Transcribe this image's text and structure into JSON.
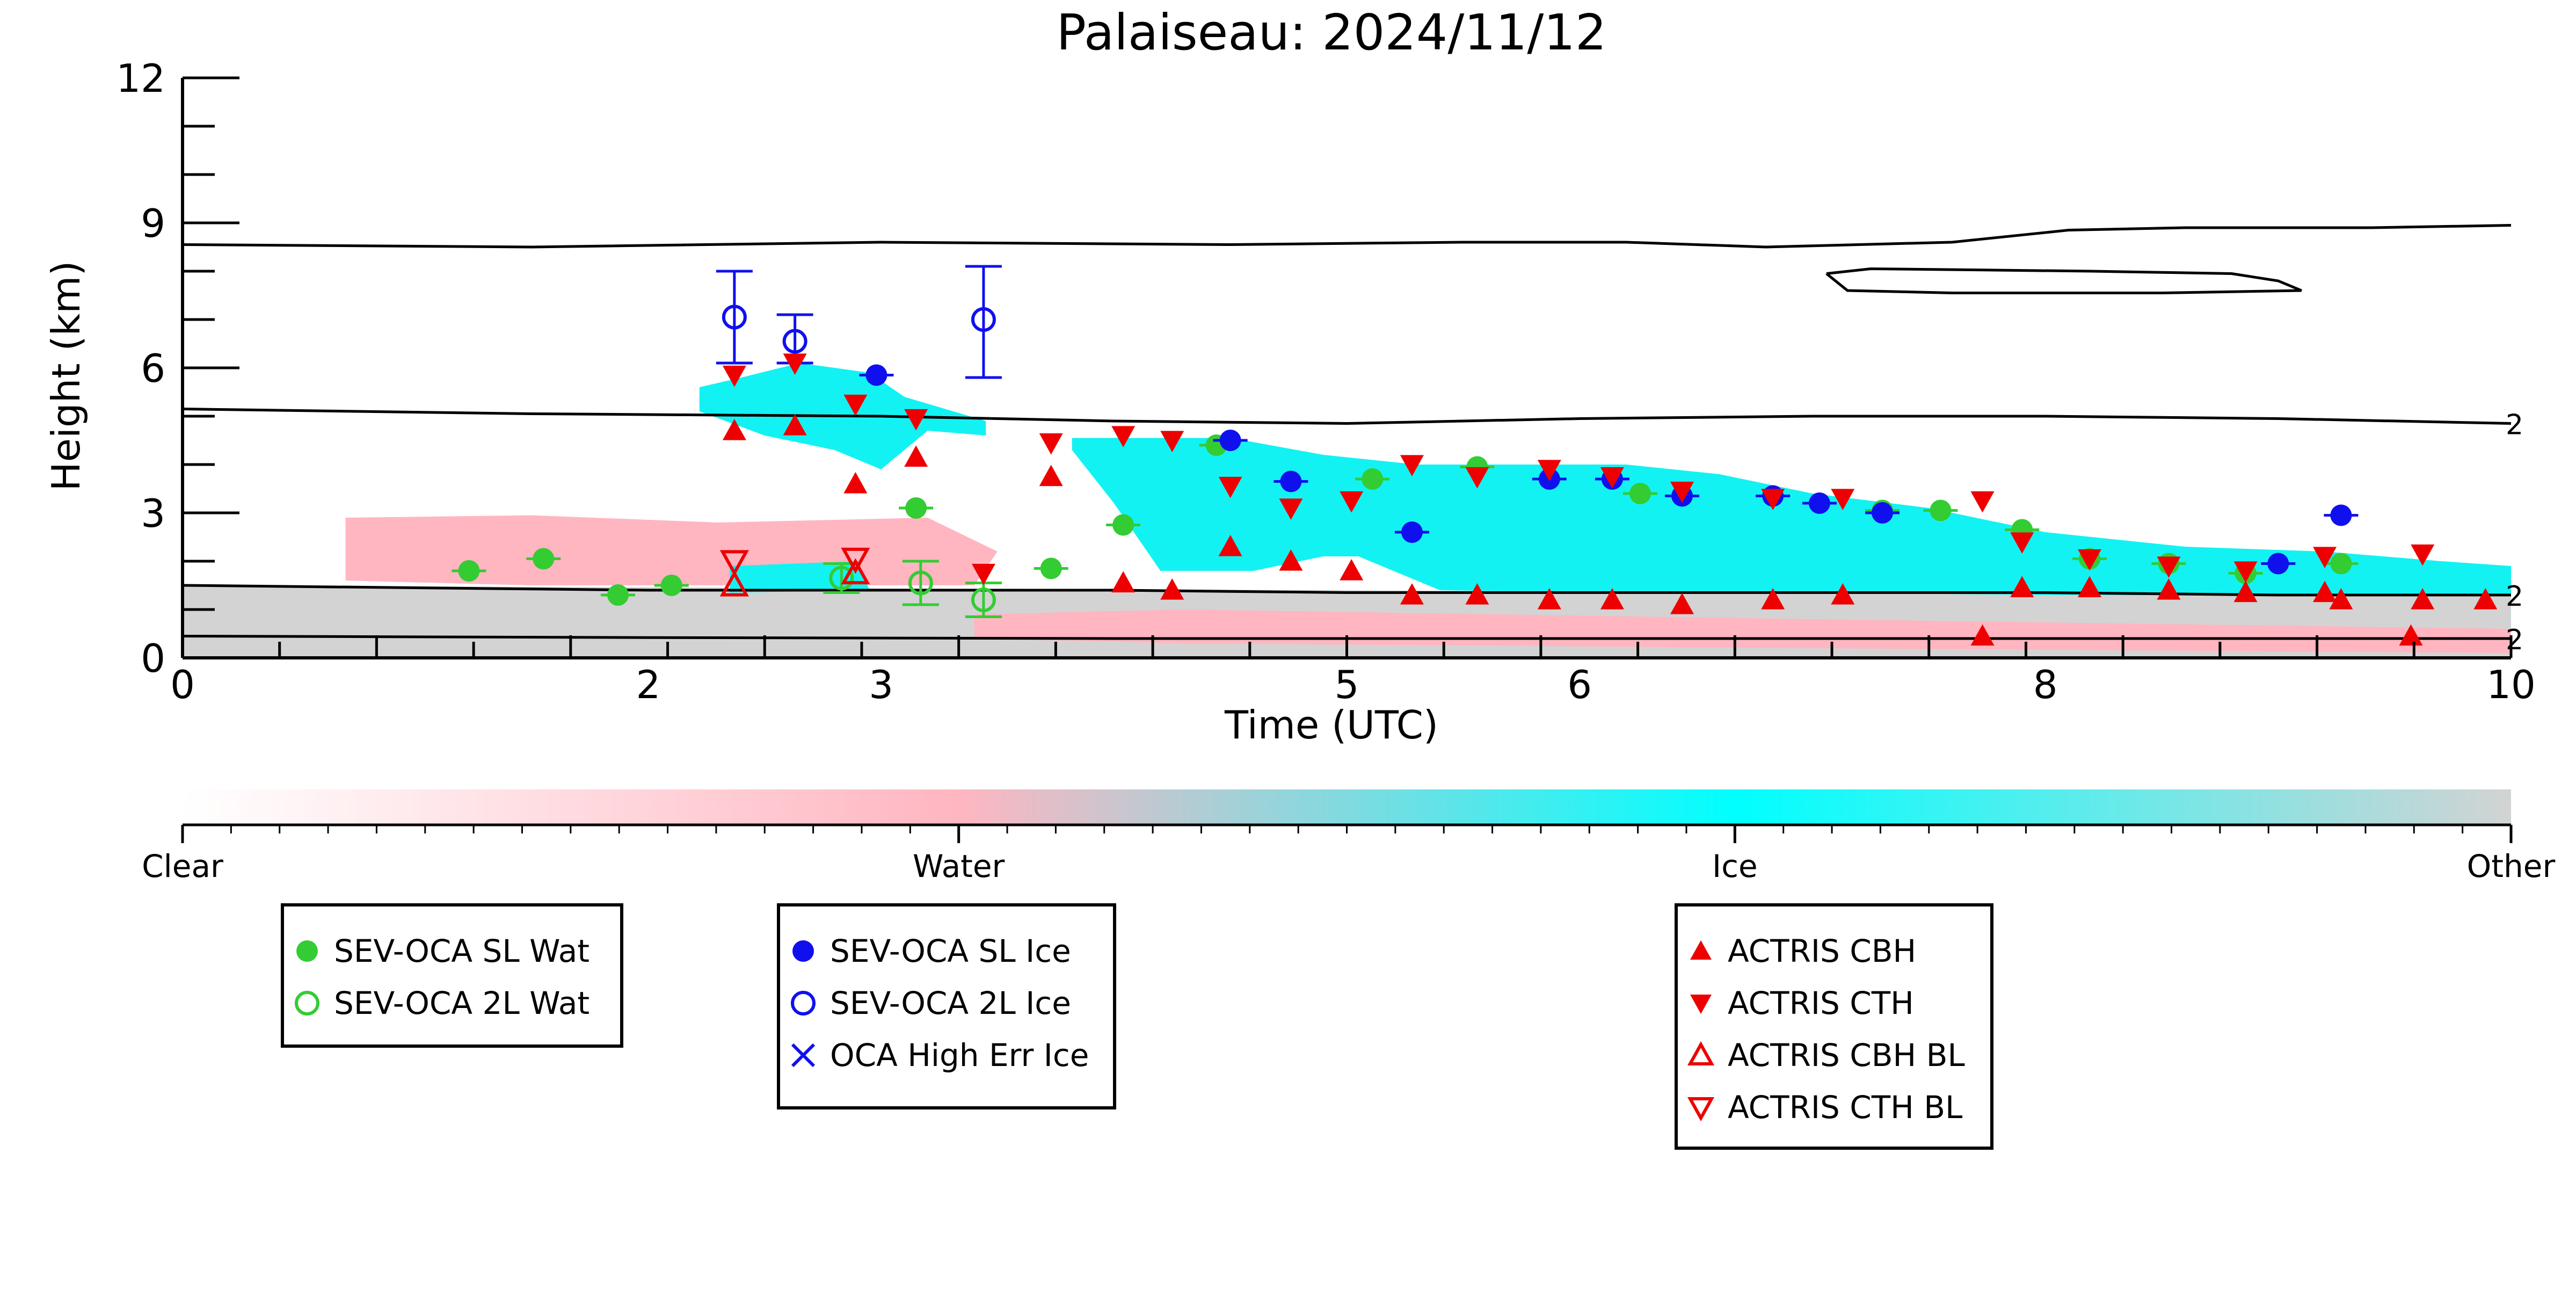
{
  "chart_data": {
    "type": "scatter",
    "title": "Palaiseau: 2024/11/12",
    "xlabel": "Time (UTC)",
    "ylabel": "Height (km)",
    "xlim": [
      0,
      10
    ],
    "ylim": [
      0,
      12
    ],
    "x_ticks": [
      {
        "value": 0,
        "label": "0"
      },
      {
        "value": 2,
        "label": "2"
      },
      {
        "value": 3,
        "label": "3"
      },
      {
        "value": 5,
        "label": "5"
      },
      {
        "value": 6,
        "label": "6"
      },
      {
        "value": 8,
        "label": "8"
      },
      {
        "value": 10,
        "label": "10"
      }
    ],
    "y_ticks": [
      {
        "value": 0,
        "label": "0"
      },
      {
        "value": 3,
        "label": "3"
      },
      {
        "value": 6,
        "label": "6"
      },
      {
        "value": 9,
        "label": "9"
      },
      {
        "value": 12,
        "label": "12"
      }
    ],
    "contour_label": "2",
    "colorbar": {
      "labels": [
        "Clear",
        "Water",
        "Ice",
        "Other"
      ],
      "colors": [
        "#ffffff",
        "#ffb6c1",
        "#00ffff",
        "#d3d3d3"
      ]
    },
    "colors": {
      "water_marker": "#33cc33",
      "ice_marker": "#1010ee",
      "actris_marker": "#ee0000",
      "ice_mask": "#13f2f2",
      "water_mask": "#ffb6c1",
      "other_mask": "#d3d3d3",
      "contour": "#000000"
    },
    "legends": [
      {
        "entries": [
          "SEV-OCA SL Wat",
          "SEV-OCA 2L Wat"
        ]
      },
      {
        "entries": [
          "SEV-OCA SL Ice",
          "SEV-OCA 2L Ice",
          "OCA High Err Ice"
        ]
      },
      {
        "entries": [
          "ACTRIS CBH",
          "ACTRIS CTH",
          "ACTRIS CBH BL",
          "ACTRIS CTH BL"
        ]
      }
    ],
    "series": [
      {
        "name": "SEV-OCA SL Wat",
        "marker": "filled-circle",
        "color": "#33cc33",
        "points": [
          [
            1.23,
            1.8
          ],
          [
            1.55,
            2.05
          ],
          [
            1.87,
            1.3
          ],
          [
            2.1,
            1.5
          ],
          [
            3.15,
            3.1
          ],
          [
            3.73,
            1.85
          ],
          [
            4.04,
            2.75
          ],
          [
            4.44,
            4.4
          ],
          [
            5.11,
            3.7
          ],
          [
            5.56,
            3.95
          ],
          [
            6.26,
            3.4
          ],
          [
            7.3,
            3.05
          ],
          [
            7.55,
            3.05
          ],
          [
            7.9,
            2.65
          ],
          [
            8.19,
            2.05
          ],
          [
            8.53,
            1.95
          ],
          [
            8.86,
            1.75
          ],
          [
            9.27,
            1.95
          ]
        ]
      },
      {
        "name": "SEV-OCA 2L Wat",
        "marker": "open-circle",
        "color": "#33cc33",
        "points": [
          [
            2.83,
            1.65
          ],
          [
            3.17,
            1.55
          ],
          [
            3.44,
            1.2
          ]
        ]
      },
      {
        "name": "SEV-OCA SL Ice",
        "marker": "filled-circle",
        "color": "#1010ee",
        "points": [
          [
            2.98,
            5.85
          ],
          [
            4.5,
            4.5
          ],
          [
            4.76,
            3.65
          ],
          [
            5.28,
            2.6
          ],
          [
            5.87,
            3.7
          ],
          [
            6.14,
            3.7
          ],
          [
            6.44,
            3.35
          ],
          [
            6.83,
            3.35
          ],
          [
            7.03,
            3.2
          ],
          [
            7.3,
            3.0
          ],
          [
            9.0,
            1.95
          ],
          [
            9.27,
            2.95
          ]
        ]
      },
      {
        "name": "SEV-OCA 2L Ice",
        "marker": "open-circle",
        "color": "#1010ee",
        "points": [
          [
            2.37,
            7.05
          ],
          [
            2.63,
            6.55
          ],
          [
            3.44,
            7.0
          ]
        ]
      },
      {
        "name": "ACTRIS CBH",
        "marker": "triangle-up",
        "color": "#ee0000",
        "points": [
          [
            2.37,
            4.7
          ],
          [
            2.63,
            4.8
          ],
          [
            2.89,
            3.6
          ],
          [
            3.15,
            4.15
          ],
          [
            3.73,
            3.75
          ],
          [
            4.04,
            1.55
          ],
          [
            4.25,
            1.4
          ],
          [
            4.5,
            2.3
          ],
          [
            4.76,
            2.0
          ],
          [
            5.02,
            1.8
          ],
          [
            5.28,
            1.3
          ],
          [
            5.56,
            1.3
          ],
          [
            5.87,
            1.2
          ],
          [
            6.14,
            1.2
          ],
          [
            6.44,
            1.1
          ],
          [
            6.83,
            1.2
          ],
          [
            7.13,
            1.3
          ],
          [
            7.73,
            0.45
          ],
          [
            7.9,
            1.45
          ],
          [
            8.19,
            1.45
          ],
          [
            8.53,
            1.4
          ],
          [
            8.86,
            1.35
          ],
          [
            9.2,
            1.35
          ],
          [
            9.57,
            0.45
          ],
          [
            9.89,
            1.2
          ],
          [
            9.27,
            1.2
          ],
          [
            9.62,
            1.2
          ]
        ]
      },
      {
        "name": "ACTRIS CTH",
        "marker": "triangle-down",
        "color": "#ee0000",
        "points": [
          [
            2.37,
            5.85
          ],
          [
            2.63,
            6.1
          ],
          [
            2.89,
            5.25
          ],
          [
            3.15,
            4.95
          ],
          [
            3.44,
            1.75
          ],
          [
            3.73,
            4.45
          ],
          [
            4.04,
            4.6
          ],
          [
            4.25,
            4.5
          ],
          [
            4.5,
            3.55
          ],
          [
            4.76,
            3.1
          ],
          [
            5.02,
            3.25
          ],
          [
            5.28,
            4.0
          ],
          [
            5.56,
            3.75
          ],
          [
            5.87,
            3.9
          ],
          [
            6.14,
            3.75
          ],
          [
            6.44,
            3.45
          ],
          [
            6.83,
            3.3
          ],
          [
            7.13,
            3.3
          ],
          [
            7.73,
            3.25
          ],
          [
            7.9,
            2.4
          ],
          [
            8.19,
            2.05
          ],
          [
            8.53,
            1.9
          ],
          [
            8.86,
            1.8
          ],
          [
            9.2,
            2.1
          ],
          [
            9.62,
            2.15
          ]
        ]
      },
      {
        "name": "ACTRIS CBH BL",
        "marker": "open-triangle-up",
        "color": "#ee0000",
        "points": [
          [
            2.37,
            1.5
          ],
          [
            2.89,
            1.75
          ]
        ]
      },
      {
        "name": "ACTRIS CTH BL",
        "marker": "open-triangle-down",
        "color": "#ee0000",
        "points": [
          [
            2.37,
            2.0
          ],
          [
            2.89,
            2.05
          ]
        ]
      }
    ],
    "error_bars": {
      "SEV-OCA 2L Ice": [
        [
          2.37,
          6.1,
          8.0
        ],
        [
          2.63,
          6.1,
          7.1
        ],
        [
          3.44,
          5.8,
          8.1
        ]
      ],
      "SEV-OCA 2L Wat": [
        [
          2.83,
          1.35,
          1.95
        ],
        [
          3.17,
          1.1,
          2.0
        ],
        [
          3.44,
          0.85,
          1.55
        ]
      ]
    },
    "contours": [
      [
        [
          0,
          8.55
        ],
        [
          1.5,
          8.5
        ],
        [
          3,
          8.6
        ],
        [
          4.5,
          8.55
        ],
        [
          5.5,
          8.6
        ],
        [
          6.2,
          8.6
        ],
        [
          6.8,
          8.5
        ],
        [
          7.2,
          8.55
        ],
        [
          7.6,
          8.6
        ],
        [
          8.1,
          8.85
        ],
        [
          8.6,
          8.9
        ],
        [
          9.4,
          8.9
        ],
        [
          10,
          8.95
        ]
      ],
      [
        [
          7.06,
          7.95
        ],
        [
          7.25,
          8.05
        ],
        [
          8.2,
          8.0
        ],
        [
          8.8,
          7.95
        ],
        [
          9.0,
          7.8
        ],
        [
          9.1,
          7.6
        ],
        [
          8.5,
          7.55
        ],
        [
          7.6,
          7.55
        ],
        [
          7.15,
          7.6
        ],
        [
          7.06,
          7.95
        ]
      ],
      [
        [
          0,
          5.15
        ],
        [
          1.5,
          5.05
        ],
        [
          3,
          5.0
        ],
        [
          4,
          4.9
        ],
        [
          5,
          4.85
        ],
        [
          6,
          4.95
        ],
        [
          7,
          5.0
        ],
        [
          8,
          5.0
        ],
        [
          9,
          4.95
        ],
        [
          10,
          4.85
        ]
      ],
      [
        [
          0,
          1.5
        ],
        [
          1,
          1.45
        ],
        [
          2,
          1.4
        ],
        [
          3,
          1.4
        ],
        [
          4,
          1.4
        ],
        [
          5,
          1.35
        ],
        [
          6,
          1.35
        ],
        [
          7,
          1.35
        ],
        [
          8,
          1.35
        ],
        [
          9,
          1.3
        ],
        [
          10,
          1.3
        ]
      ],
      [
        [
          0,
          0.45
        ],
        [
          2,
          0.42
        ],
        [
          4,
          0.4
        ],
        [
          6,
          0.4
        ],
        [
          8,
          0.4
        ],
        [
          10,
          0.4
        ]
      ]
    ],
    "regions": [
      {
        "type": "other",
        "points": [
          [
            0,
            1.5
          ],
          [
            10,
            1.3
          ],
          [
            10,
            0
          ],
          [
            0,
            0
          ]
        ]
      },
      {
        "type": "water",
        "points": [
          [
            0.7,
            2.9
          ],
          [
            1.5,
            2.95
          ],
          [
            2.3,
            2.8
          ],
          [
            3.2,
            2.9
          ],
          [
            3.5,
            2.2
          ],
          [
            3.4,
            1.5
          ],
          [
            1.5,
            1.5
          ],
          [
            0.7,
            1.6
          ]
        ]
      },
      {
        "type": "water",
        "points": [
          [
            3.4,
            0.9
          ],
          [
            4.3,
            1.0
          ],
          [
            7.0,
            0.8
          ],
          [
            10,
            0.6
          ],
          [
            10,
            0.1
          ],
          [
            7.0,
            0.2
          ],
          [
            4.3,
            0.3
          ],
          [
            3.4,
            0.4
          ]
        ]
      },
      {
        "type": "ice",
        "points": [
          [
            2.22,
            5.6
          ],
          [
            2.4,
            5.8
          ],
          [
            2.65,
            6.1
          ],
          [
            2.95,
            5.9
          ],
          [
            3.1,
            5.4
          ],
          [
            3.45,
            4.9
          ],
          [
            3.45,
            4.6
          ],
          [
            3.2,
            4.7
          ],
          [
            3.0,
            3.9
          ],
          [
            2.8,
            4.3
          ],
          [
            2.5,
            4.6
          ],
          [
            2.22,
            5.1
          ]
        ]
      },
      {
        "type": "ice",
        "points": [
          [
            2.35,
            1.9
          ],
          [
            2.9,
            2.0
          ],
          [
            2.95,
            1.4
          ],
          [
            2.35,
            1.35
          ]
        ]
      },
      {
        "type": "ice",
        "points": [
          [
            3.82,
            4.55
          ],
          [
            4.5,
            4.55
          ],
          [
            4.9,
            4.2
          ],
          [
            5.3,
            4.0
          ],
          [
            5.9,
            4.0
          ],
          [
            6.2,
            4.0
          ],
          [
            6.6,
            3.8
          ],
          [
            7.0,
            3.4
          ],
          [
            7.5,
            3.1
          ],
          [
            8.0,
            2.6
          ],
          [
            8.6,
            2.3
          ],
          [
            9.2,
            2.2
          ],
          [
            9.7,
            2.0
          ],
          [
            10,
            1.9
          ],
          [
            10,
            1.3
          ],
          [
            9.0,
            1.3
          ],
          [
            8.0,
            1.3
          ],
          [
            7.0,
            1.35
          ],
          [
            6.0,
            1.35
          ],
          [
            5.4,
            1.4
          ],
          [
            5.3,
            1.6
          ],
          [
            5.2,
            1.8
          ],
          [
            5.05,
            2.1
          ],
          [
            4.9,
            2.1
          ],
          [
            4.6,
            1.8
          ],
          [
            4.2,
            1.8
          ],
          [
            4.0,
            3.2
          ],
          [
            3.82,
            4.3
          ]
        ]
      }
    ]
  }
}
